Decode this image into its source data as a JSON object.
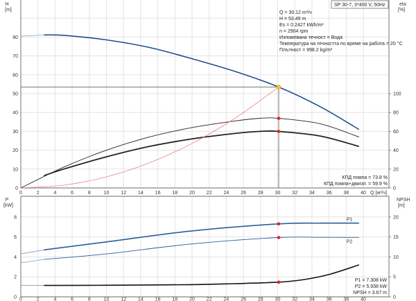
{
  "title_box": "SP 30-7, 3*400 V, 50Hz",
  "info": [
    "Q = 30.12 m³/ч",
    "H = 53.49 m",
    "Es = 0.2427 kWh/m³",
    "n = 2904 rpm",
    "Изпомпвана течност = Вода",
    "Температура на течността по време на работа = 20 °C",
    "Плътност = 998.2 kg/m³"
  ],
  "eff_info": [
    "КПД помпа = 73.8 %",
    "КПД помпа+двигат. = 59.9 %"
  ],
  "power_info": [
    "P1 = 7.308 kW",
    "P2 = 5.938 kW",
    "NPSH = 3.67 m"
  ],
  "colors": {
    "head": "#1f4e8c",
    "power": "#2a5d9a",
    "eff": "#222222",
    "system": "#f08080",
    "dot": "#e02020",
    "duty": "#f5c518"
  },
  "chart_data": [
    {
      "type": "line",
      "xlabel": "Q [м³/ч]",
      "xlim": [
        0,
        43
      ],
      "xticks": [
        0,
        2,
        4,
        6,
        8,
        10,
        12,
        14,
        16,
        18,
        20,
        22,
        24,
        26,
        28,
        30,
        32,
        34,
        36,
        38,
        40
      ],
      "ylabel": "H",
      "yunit": "[m]",
      "ylim": [
        0,
        100
      ],
      "yticks": [
        0,
        10,
        20,
        30,
        40,
        50,
        60,
        70,
        80
      ],
      "y2label": "eta",
      "y2unit": "[%]",
      "y2ticks": [
        0,
        20,
        40,
        60,
        80,
        100
      ],
      "grid": true,
      "duty_point": {
        "q": 30.12,
        "h": 53.49,
        "eta_pump": 73.8,
        "eta_total": 59.9
      },
      "series": [
        {
          "key": "head",
          "axis": "left",
          "points": [
            [
              0,
              80.5
            ],
            [
              2.7,
              81.1
            ],
            [
              5,
              80.9
            ],
            [
              10,
              78.5
            ],
            [
              15,
              74.5
            ],
            [
              20,
              68.5
            ],
            [
              25,
              61.8
            ],
            [
              30.12,
              53.49
            ],
            [
              35,
              43
            ],
            [
              39.5,
              31
            ]
          ]
        },
        {
          "key": "eta_pump",
          "axis": "right",
          "points": [
            [
              0,
              0
            ],
            [
              5,
              22
            ],
            [
              10,
              40
            ],
            [
              15,
              54
            ],
            [
              20,
              64
            ],
            [
              25,
              71
            ],
            [
              28,
              73.9
            ],
            [
              30.12,
              73.8
            ],
            [
              35,
              68
            ],
            [
              39.5,
              54
            ]
          ]
        },
        {
          "key": "eta_total",
          "axis": "right",
          "points": [
            [
              2.7,
              13
            ],
            [
              5,
              20
            ],
            [
              10,
              33
            ],
            [
              15,
              44
            ],
            [
              20,
              52
            ],
            [
              25,
              57.8
            ],
            [
              28,
              60
            ],
            [
              30.12,
              59.9
            ],
            [
              35,
              55
            ],
            [
              39.5,
              44
            ]
          ]
        },
        {
          "key": "system",
          "axis": "left",
          "points": [
            [
              0,
              0
            ],
            [
              5,
              1.47
            ],
            [
              10,
              5.9
            ],
            [
              15,
              13.3
            ],
            [
              20,
              23.6
            ],
            [
              25,
              36.9
            ],
            [
              30.12,
              53.49
            ]
          ]
        }
      ]
    },
    {
      "type": "line",
      "xlim": [
        0,
        43
      ],
      "xticks": [
        0,
        2,
        4,
        6,
        8,
        10,
        12,
        14,
        16,
        18,
        20,
        22,
        24,
        26,
        28,
        30,
        32,
        34,
        36,
        38,
        40
      ],
      "ylabel": "P",
      "yunit": "[kW]",
      "ylim": [
        0,
        10
      ],
      "yticks": [
        0,
        2,
        4,
        6,
        8
      ],
      "y2label": "NPSH",
      "y2unit": "[m]",
      "y2ticks": [
        0,
        5,
        10,
        15,
        20
      ],
      "grid": true,
      "series": [
        {
          "key": "P1",
          "name": "P1",
          "axis": "left",
          "points": [
            [
              0,
              4.3
            ],
            [
              2.7,
              4.7
            ],
            [
              10,
              5.5
            ],
            [
              20,
              6.6
            ],
            [
              30.12,
              7.308
            ],
            [
              35,
              7.38
            ],
            [
              39.5,
              7.38
            ]
          ]
        },
        {
          "key": "P2",
          "name": "P2",
          "axis": "left",
          "points": [
            [
              0,
              3.4
            ],
            [
              2.7,
              3.75
            ],
            [
              10,
              4.3
            ],
            [
              20,
              5.3
            ],
            [
              30.12,
              5.938
            ],
            [
              35,
              5.96
            ],
            [
              39.5,
              5.95
            ]
          ]
        },
        {
          "key": "NPSH",
          "axis": "right",
          "points": [
            [
              0,
              2.9
            ],
            [
              2.7,
              2.85
            ],
            [
              10,
              2.9
            ],
            [
              20,
              3.05
            ],
            [
              25,
              3.3
            ],
            [
              30.12,
              3.67
            ],
            [
              33,
              4.3
            ],
            [
              36,
              5.6
            ],
            [
              39.5,
              8
            ]
          ]
        }
      ]
    }
  ]
}
